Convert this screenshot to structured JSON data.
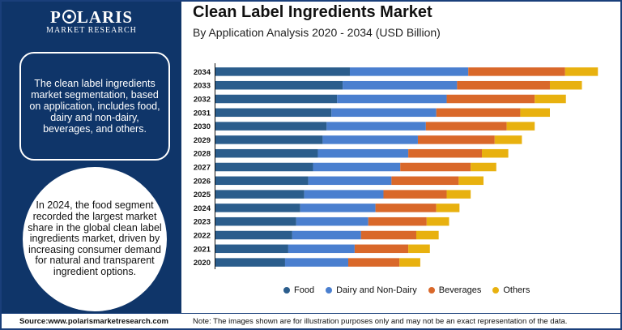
{
  "brand": {
    "name_pre": "P",
    "name_post": "LARIS",
    "sub": "MARKET RESEARCH"
  },
  "sidebar": {
    "description": "The clean label ingredients market segmentation, based on application, includes food, dairy and non-dairy, beverages, and others.",
    "highlight": "In 2024, the food segment recorded the largest market share in the global clean label ingredients market, driven by increasing consumer demand for natural and transparent ingredient options."
  },
  "footer": {
    "source": "Source:www.polarismarketresearch.com",
    "note": "Note: The images shown are for illustration purposes only and may not be an exact representation of the data."
  },
  "colors": {
    "food": "#2b5d8c",
    "dairy": "#4a7fcf",
    "beverages": "#d9682a",
    "others": "#e8b10f"
  },
  "chart_data": {
    "type": "bar",
    "orientation": "horizontal",
    "stacked": true,
    "title": "Clean Label Ingredients Market",
    "subtitle": "By Application Analysis 2020 - 2034 (USD Billion)",
    "categories": [
      "2034",
      "2033",
      "2032",
      "2031",
      "2030",
      "2029",
      "2028",
      "2027",
      "2026",
      "2025",
      "2024",
      "2023",
      "2022",
      "2021",
      "2020"
    ],
    "series": [
      {
        "name": "Food",
        "values": [
          16.8,
          15.9,
          15.2,
          14.5,
          13.9,
          13.4,
          12.8,
          12.2,
          11.6,
          11.1,
          10.6,
          10.1,
          9.6,
          9.1,
          8.7
        ]
      },
      {
        "name": "Dairy and Non-Dairy",
        "values": [
          14.8,
          14.3,
          13.7,
          13.1,
          12.4,
          11.9,
          11.3,
          10.9,
          10.4,
          9.9,
          9.4,
          9.0,
          8.6,
          8.3,
          7.9
        ]
      },
      {
        "name": "Beverages",
        "values": [
          12.1,
          11.6,
          11.0,
          10.5,
          10.1,
          9.6,
          9.2,
          8.8,
          8.4,
          7.9,
          7.6,
          7.3,
          6.9,
          6.7,
          6.4
        ]
      },
      {
        "name": "Others",
        "values": [
          4.1,
          4.0,
          3.9,
          3.7,
          3.5,
          3.4,
          3.3,
          3.2,
          3.1,
          3.0,
          2.9,
          2.8,
          2.8,
          2.7,
          2.6
        ]
      }
    ],
    "xlim": [
      0,
      50
    ],
    "grid": false,
    "legend": "bottom"
  }
}
